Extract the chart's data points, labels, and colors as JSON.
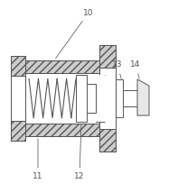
{
  "bg_color": "#ffffff",
  "dc": "#555555",
  "hatch_fc": "#cccccc",
  "fig_width": 1.97,
  "fig_height": 2.14,
  "dpi": 100,
  "spring_coils": 5,
  "spring_lw": 0.8,
  "lw": 0.7
}
